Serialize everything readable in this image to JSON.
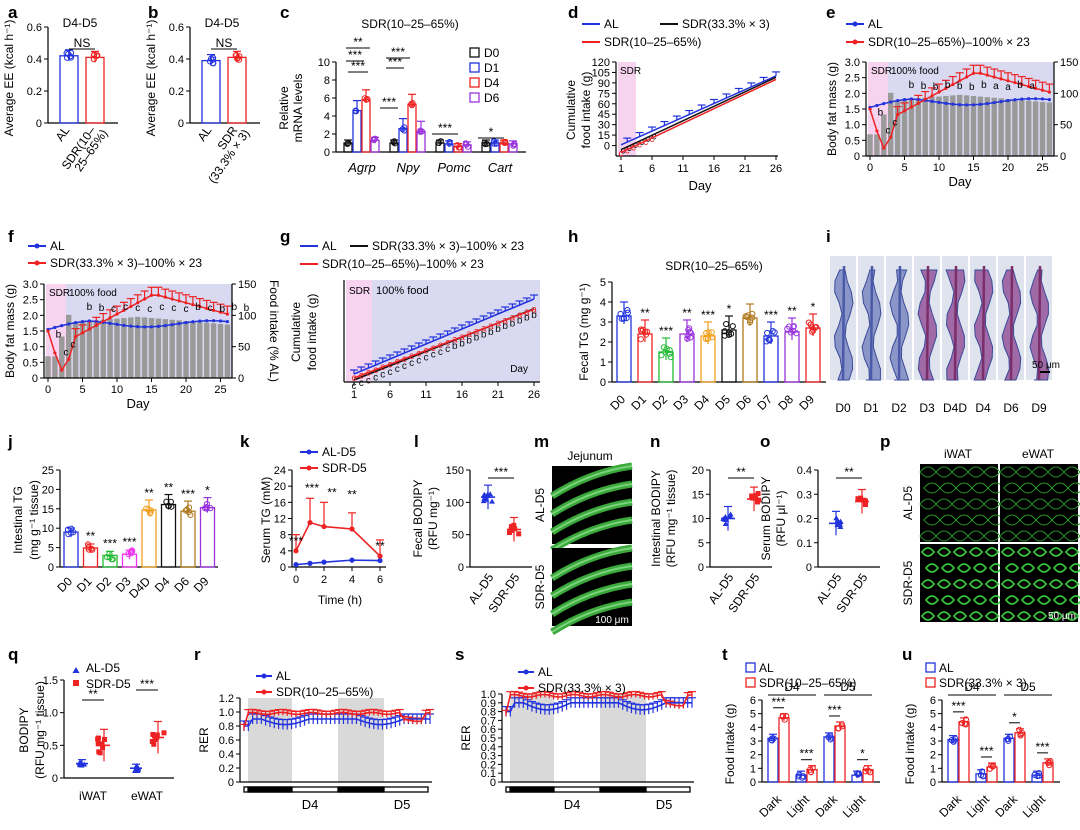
{
  "colors": {
    "blue": "#2233dd",
    "red": "#ee2222",
    "black": "#111111",
    "magenta": "#ee33ee",
    "purple": "#9933dd",
    "green": "#22bb33",
    "orange": "#f0a020",
    "brown": "#b07a1e",
    "grayBar": "#9a9a9a",
    "sdrShade": "#f6d3ee",
    "foodShade": "#d9d9f2",
    "night": "#d9d9d9"
  },
  "panel_labels": [
    "a",
    "b",
    "c",
    "d",
    "e",
    "f",
    "g",
    "h",
    "i",
    "j",
    "k",
    "l",
    "m",
    "n",
    "o",
    "p",
    "q",
    "r",
    "s",
    "t",
    "u"
  ],
  "chart_data": [
    {
      "id": "a",
      "type": "bar",
      "title": "D4-D5",
      "categories": [
        "AL",
        "SDR(10–25–65%)"
      ],
      "values": [
        0.42,
        0.41
      ],
      "ylabel": "Average EE (kcal h⁻¹)",
      "ylim": [
        0,
        0.6
      ],
      "yticks": [
        "0",
        "0.2",
        "0.4",
        "0.6"
      ],
      "sig": "NS"
    },
    {
      "id": "b",
      "type": "bar",
      "title": "D4-D5",
      "categories": [
        "AL",
        "SDR (33.3% × 3)"
      ],
      "values": [
        0.39,
        0.41
      ],
      "ylabel": "Average EE (kcal h⁻¹)",
      "ylim": [
        0,
        0.6
      ],
      "yticks": [
        "0",
        "0.2",
        "0.4",
        "0.6"
      ],
      "sig": "NS"
    },
    {
      "id": "c",
      "type": "bar",
      "title": "SDR(10–25–65%)",
      "ylabel": "Relative mRNA levels",
      "ylim": [
        0,
        10
      ],
      "yticks": [
        "0",
        "2",
        "4",
        "6",
        "8",
        "10"
      ],
      "categories": [
        "Agrp",
        "Npy",
        "Pomc",
        "Cart"
      ],
      "legend": [
        "D0",
        "D1",
        "D4",
        "D6"
      ],
      "series": [
        {
          "name": "D0",
          "values": [
            1,
            1,
            1,
            1
          ]
        },
        {
          "name": "D1",
          "values": [
            4.6,
            2.6,
            0.9,
            1.0
          ]
        },
        {
          "name": "D4",
          "values": [
            5.8,
            5.3,
            0.6,
            1.0
          ]
        },
        {
          "name": "D6",
          "values": [
            1.3,
            2.3,
            0.8,
            0.9
          ]
        }
      ],
      "sigs": [
        "**",
        "***",
        "***",
        "***",
        "***",
        "***",
        "***",
        "*"
      ]
    },
    {
      "id": "d",
      "type": "line",
      "ylabel": "Cumulative food intake (g)",
      "xlabel": "Day",
      "xticks": [
        "1",
        "6",
        "11",
        "16",
        "21",
        "26"
      ],
      "yticks": [
        "0",
        "15",
        "30",
        "45",
        "60",
        "75",
        "90",
        "105",
        "120"
      ],
      "ylim": [
        -15,
        120
      ],
      "shade": "SDR",
      "legend": [
        "AL",
        "SDR(33.3% × 3)",
        "SDR(10–25–65%)"
      ],
      "series": [
        {
          "name": "AL",
          "x": [
            1,
            26
          ],
          "y": [
            1,
            100
          ]
        },
        {
          "name": "SDR(33.3% × 3)",
          "x": [
            1,
            26
          ],
          "y": [
            -6,
            98
          ]
        },
        {
          "name": "SDR(10–25–65%)",
          "x": [
            1,
            26
          ],
          "y": [
            -10,
            95
          ]
        }
      ]
    },
    {
      "id": "e",
      "type": "line+bar",
      "ylabel": "Body fat mass (g)",
      "y2label": "Food intake (% AL)",
      "xlabel": "Day",
      "xticks": [
        "0",
        "5",
        "10",
        "15",
        "20",
        "25"
      ],
      "yticks": [
        "0",
        "0.5",
        "1.0",
        "1.5",
        "2.0",
        "2.5",
        "3.0"
      ],
      "y2ticks": [
        "0",
        "50",
        "100",
        "150"
      ],
      "shadeA": "SDR",
      "shadeB": "100% food",
      "legend": [
        "AL",
        "SDR(10–25–65%)–100% × 23"
      ],
      "letters": "bbbbbbbaaba"
    },
    {
      "id": "f",
      "type": "line+bar",
      "ylabel": "Body fat mass (g)",
      "y2label": "Food intake (% AL)",
      "xlabel": "Day",
      "xticks": [
        "0",
        "5",
        "10",
        "15",
        "20",
        "25"
      ],
      "yticks": [
        "0",
        "0.5",
        "1.0",
        "1.5",
        "2.0",
        "2.5",
        "3.0"
      ],
      "y2ticks": [
        "0",
        "50",
        "100",
        "150"
      ],
      "shadeA": "SDR",
      "shadeB": "100% food",
      "legend": [
        "AL",
        "SDR(33.3% × 3)–100% × 23"
      ],
      "letters": "bbcccccccbcbbb"
    },
    {
      "id": "g",
      "type": "line",
      "ylabel": "Cumulative food intake (g)",
      "xlabel": "Day",
      "xticks": [
        "1",
        "6",
        "11",
        "16",
        "21",
        "26"
      ],
      "shadeA": "SDR",
      "shadeB": "100% food",
      "daylabel": "Day",
      "legend": [
        "AL",
        "SDR(33.3% × 3)–100% × 23",
        "SDR(10–25–65%)–100% × 23"
      ]
    },
    {
      "id": "h",
      "type": "bar",
      "title": "SDR(10–25–65%)",
      "ylabel": "Fecal TG (mg g⁻¹)",
      "ylim": [
        0,
        5
      ],
      "yticks": [
        "0",
        "1",
        "2",
        "3",
        "4",
        "5"
      ],
      "categories": [
        "D0",
        "D1",
        "D2",
        "D3",
        "D4",
        "D5",
        "D6",
        "D7",
        "D8",
        "D9"
      ],
      "values": [
        3.3,
        2.4,
        1.5,
        2.4,
        2.3,
        2.6,
        3.2,
        2.3,
        2.5,
        2.7
      ],
      "sigs": [
        "",
        "**",
        "***",
        "**",
        "***",
        "*",
        "",
        "***",
        "**",
        "*"
      ]
    },
    {
      "id": "i",
      "type": "image",
      "categories": [
        "D0",
        "D1",
        "D2",
        "D3",
        "D4D",
        "D4",
        "D6",
        "D9"
      ],
      "scale": "50 μm"
    },
    {
      "id": "j",
      "type": "bar",
      "ylabel": "Intestinal TG (mg g⁻¹ tissue)",
      "ylim": [
        0,
        25
      ],
      "yticks": [
        "0",
        "5",
        "10",
        "15",
        "20",
        "25"
      ],
      "categories": [
        "D0",
        "D1",
        "D2",
        "D3",
        "D4D",
        "D4",
        "D6",
        "D9"
      ],
      "values": [
        9.0,
        4.9,
        3.0,
        3.3,
        14.7,
        16.1,
        14.4,
        15.3
      ],
      "sigs": [
        "",
        "**",
        "***",
        "***",
        "**",
        "**",
        "***",
        "*"
      ]
    },
    {
      "id": "k",
      "type": "line",
      "ylabel": "Serum TG (mM)",
      "xlabel": "Time (h)",
      "xticks": [
        "0",
        "2",
        "4",
        "6"
      ],
      "yticks": [
        "0",
        "4",
        "8",
        "12",
        "16",
        "20",
        "24"
      ],
      "ylim": [
        0,
        24
      ],
      "legend": [
        "AL-D5",
        "SDR-D5"
      ],
      "series": [
        {
          "name": "AL-D5",
          "x": [
            0,
            1,
            2,
            4,
            6
          ],
          "y": [
            0.6,
            0.9,
            1.2,
            1.7,
            1.6
          ]
        },
        {
          "name": "SDR-D5",
          "x": [
            0,
            1,
            2,
            4,
            6
          ],
          "y": [
            4.0,
            11.0,
            10.0,
            9.4,
            2.7
          ]
        }
      ],
      "sigs": [
        "***",
        "***",
        "**",
        "**",
        "**"
      ]
    },
    {
      "id": "l",
      "type": "dot",
      "ylabel": "Fecal BODIPY (RFU mg⁻¹)",
      "ylim": [
        0,
        150
      ],
      "yticks": [
        "0",
        "50",
        "100",
        "150"
      ],
      "categories": [
        "AL-D5",
        "SDR-D5"
      ],
      "values": [
        108,
        58
      ],
      "sig": "***"
    },
    {
      "id": "m",
      "type": "image",
      "title": "Jejunum",
      "rows": [
        "AL-D5",
        "SDR-D5"
      ],
      "scale": "100 μm"
    },
    {
      "id": "n",
      "type": "dot",
      "ylabel": "Intestinal BODIPY (RFU mg⁻¹ tissue)",
      "ylim": [
        0,
        20
      ],
      "yticks": [
        "0",
        "5",
        "10",
        "15",
        "20"
      ],
      "categories": [
        "AL-D5",
        "SDR-D5"
      ],
      "values": [
        10,
        14
      ],
      "sig": "**"
    },
    {
      "id": "o",
      "type": "dot",
      "ylabel": "Serum BODIPY (RFU μl⁻¹)",
      "ylim": [
        0,
        0.4
      ],
      "yticks": [
        "0",
        "0.1",
        "0.2",
        "0.3",
        "0.4"
      ],
      "categories": [
        "AL-D5",
        "SDR-D5"
      ],
      "values": [
        0.18,
        0.27
      ],
      "sig": "**"
    },
    {
      "id": "p",
      "type": "image",
      "cols": [
        "iWAT",
        "eWAT"
      ],
      "rows": [
        "AL-D5",
        "SDR-D5"
      ],
      "scale": "50 μm"
    },
    {
      "id": "q",
      "type": "dot",
      "ylabel": "BODIPY (RFU mg⁻¹ tissue)",
      "ylim": [
        0,
        1.5
      ],
      "yticks": [
        "0",
        "0.5",
        "1.0",
        "1.5"
      ],
      "categories": [
        "iWAT",
        "eWAT"
      ],
      "legend": [
        "AL-D5",
        "SDR-D5"
      ],
      "series": [
        {
          "name": "AL-D5",
          "values": [
            0.22,
            0.15
          ]
        },
        {
          "name": "SDR-D5",
          "values": [
            0.5,
            0.62
          ]
        }
      ],
      "sigs": [
        "**",
        "***"
      ]
    },
    {
      "id": "r",
      "type": "line",
      "ylabel": "RER",
      "ylim": [
        0,
        1.2
      ],
      "yticks": [
        "0",
        "0.2",
        "0.4",
        "0.6",
        "0.8",
        "1.0",
        "1.2"
      ],
      "legend": [
        "AL",
        "SDR(10–25–65%)"
      ],
      "xcats": [
        "D4",
        "D5"
      ]
    },
    {
      "id": "s",
      "type": "line",
      "ylabel": "RER",
      "ylim": [
        0,
        1.0
      ],
      "yticks": [
        "0",
        "0.1",
        "0.2",
        "0.3",
        "0.4",
        "0.5",
        "0.6",
        "0.7",
        "0.8",
        "0.9",
        "1.0"
      ],
      "legend": [
        "AL",
        "SDR(33.3% × 3)"
      ],
      "xcats": [
        "D4",
        "D5"
      ]
    },
    {
      "id": "t",
      "type": "bar",
      "ylabel": "Food intake (g)",
      "ylim": [
        0,
        6
      ],
      "yticks": [
        "0",
        "1",
        "2",
        "3",
        "4",
        "5",
        "6"
      ],
      "legend": [
        "AL",
        "SDR(10–25–65%)"
      ],
      "groups": [
        "D4",
        "D5"
      ],
      "categories": [
        "Dark",
        "Light",
        "Dark",
        "Light"
      ],
      "series": [
        {
          "name": "AL",
          "values": [
            3.2,
            0.5,
            3.3,
            0.5
          ]
        },
        {
          "name": "SDR",
          "values": [
            4.7,
            0.9,
            4.1,
            0.9
          ]
        }
      ],
      "sigs": [
        "***",
        "***",
        "***",
        "*"
      ]
    },
    {
      "id": "u",
      "type": "bar",
      "ylabel": "Food intake (g)",
      "ylim": [
        0,
        6
      ],
      "yticks": [
        "0",
        "1",
        "2",
        "3",
        "4",
        "5",
        "6"
      ],
      "legend": [
        "AL",
        "SDR(33.3% × 3)"
      ],
      "groups": [
        "D4",
        "D5"
      ],
      "categories": [
        "Dark",
        "Light",
        "Dark",
        "Light"
      ],
      "series": [
        {
          "name": "AL",
          "values": [
            3.1,
            0.6,
            3.2,
            0.5
          ]
        },
        {
          "name": "SDR",
          "values": [
            4.4,
            1.1,
            3.6,
            1.4
          ]
        }
      ],
      "sigs": [
        "***",
        "***",
        "*",
        "***"
      ]
    }
  ]
}
